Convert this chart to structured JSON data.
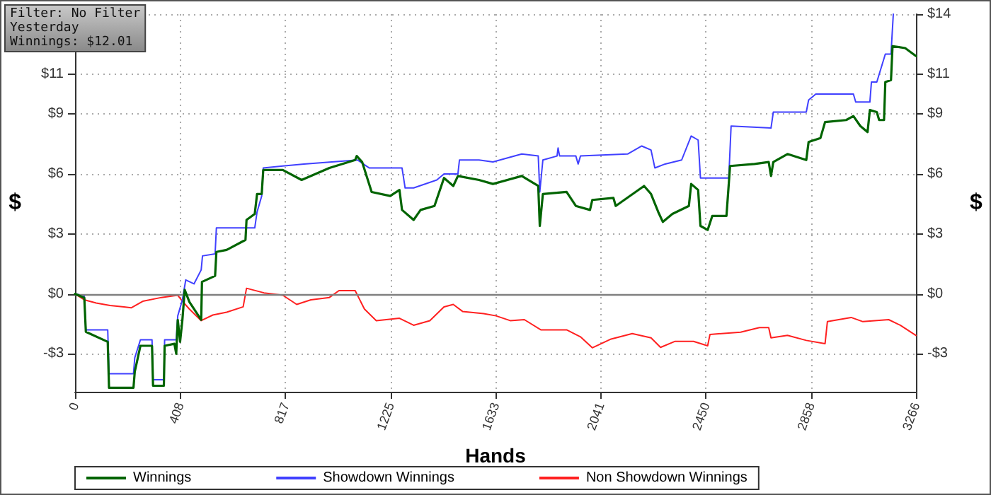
{
  "chart_data": {
    "type": "line",
    "xlabel": "Hands",
    "ylabel": "$",
    "y2label": "$",
    "annotations": [
      "Filter: No Filter",
      "Yesterday",
      "Winnings: $12.01"
    ],
    "xlim": [
      0,
      3266
    ],
    "xticks": [
      0,
      408,
      817,
      1225,
      1633,
      2041,
      2450,
      2858,
      3266
    ],
    "ylim": [
      -4.9,
      14
    ],
    "yticks": [
      {
        "value": -3,
        "label": "-$3"
      },
      {
        "value": 0,
        "label": "$0"
      },
      {
        "value": 3,
        "label": "$3"
      },
      {
        "value": 6,
        "label": "$6"
      },
      {
        "value": 9,
        "label": "$9"
      },
      {
        "value": 11,
        "label": "$11"
      },
      {
        "value": 14,
        "label": null
      }
    ],
    "y2lim": [
      -4.9,
      14
    ],
    "y2ticks": [
      {
        "value": -3,
        "label": "-$3"
      },
      {
        "value": 0,
        "label": "$0"
      },
      {
        "value": 3,
        "label": "$3"
      },
      {
        "value": 6,
        "label": "$6"
      },
      {
        "value": 9,
        "label": "$9"
      },
      {
        "value": 11,
        "label": "$11"
      },
      {
        "value": 14,
        "label": "$14"
      }
    ],
    "grid": true,
    "legend": "bottom left",
    "marker": "none",
    "line_style": "solid",
    "ref_lines": [
      {
        "axis": "y",
        "value": 0,
        "label": null,
        "color": "#808080"
      }
    ],
    "series": [
      {
        "name": "Winnings",
        "color": "#006400",
        "x": [
          0,
          36,
          42,
          127,
          132,
          227,
          232,
          254,
          299,
          303,
          345,
          348,
          386,
          393,
          399,
          408,
          417,
          426,
          444,
          490,
          493,
          544,
          549,
          589,
          662,
          666,
          698,
          707,
          725,
          731,
          807,
          880,
          988,
          1088,
          1094,
          1115,
          1152,
          1224,
          1260,
          1270,
          1315,
          1342,
          1396,
          1433,
          1469,
          1487,
          1569,
          1623,
          1735,
          1799,
          1805,
          1817,
          1909,
          1945,
          2000,
          2009,
          2091,
          2100,
          2210,
          2237,
          2265,
          2283,
          2320,
          2384,
          2393,
          2420,
          2429,
          2457,
          2475,
          2530,
          2544,
          2639,
          2694,
          2703,
          2712,
          2767,
          2840,
          2849,
          2895,
          2913,
          2995,
          3023,
          3050,
          3078,
          3087,
          3114,
          3123,
          3142,
          3147,
          3169,
          3175,
          3224,
          3266
        ],
        "values": [
          0,
          -0.2,
          -1.9,
          -2.4,
          -4.7,
          -4.7,
          -3.9,
          -2.6,
          -2.6,
          -4.6,
          -4.6,
          -2.6,
          -2.5,
          -3.0,
          -1.3,
          -2.4,
          -1.3,
          0.2,
          -0.4,
          -1.3,
          0.6,
          0.9,
          2.1,
          2.2,
          2.7,
          3.7,
          4.0,
          5.0,
          5.0,
          6.2,
          6.2,
          5.7,
          6.3,
          6.7,
          6.9,
          6.6,
          5.1,
          4.9,
          5.2,
          4.2,
          3.7,
          4.2,
          4.4,
          5.8,
          5.4,
          5.9,
          5.7,
          5.5,
          5.9,
          5.4,
          3.4,
          5.0,
          5.1,
          4.4,
          4.2,
          4.7,
          4.8,
          4.4,
          5.4,
          5.0,
          4.1,
          3.6,
          4.0,
          4.4,
          5.5,
          5.2,
          3.4,
          3.2,
          3.9,
          3.9,
          6.4,
          6.5,
          6.6,
          5.9,
          6.6,
          7.0,
          6.7,
          7.6,
          7.8,
          8.6,
          8.7,
          8.9,
          8.4,
          8.1,
          9.2,
          9.1,
          8.7,
          8.7,
          10.6,
          10.7,
          12.4,
          12.3,
          11.9
        ]
      },
      {
        "name": "Showdown Winnings",
        "color": "#4040ff",
        "x": [
          0,
          36,
          42,
          127,
          132,
          227,
          232,
          254,
          299,
          303,
          345,
          348,
          393,
          399,
          417,
          430,
          462,
          490,
          495,
          544,
          549,
          698,
          707,
          725,
          731,
          807,
          889,
          1097,
          1143,
          1270,
          1282,
          1315,
          1405,
          1433,
          1487,
          1493,
          1569,
          1623,
          1735,
          1799,
          1805,
          1817,
          1872,
          1876,
          1882,
          1945,
          1954,
          1963,
          2146,
          2201,
          2237,
          2252,
          2292,
          2356,
          2393,
          2420,
          2429,
          2539,
          2548,
          2703,
          2712,
          2840,
          2849,
          2877,
          3023,
          3032,
          3087,
          3093,
          3114,
          3147,
          3169,
          3178
        ],
        "values": [
          0,
          -0.1,
          -1.8,
          -1.8,
          -4.0,
          -4.0,
          -3.2,
          -2.3,
          -2.3,
          -4.3,
          -4.3,
          -2.3,
          -2.3,
          -1.1,
          -0.3,
          0.7,
          0.5,
          1.2,
          1.9,
          2.0,
          3.3,
          3.3,
          4.1,
          4.9,
          6.3,
          6.4,
          6.5,
          6.7,
          6.3,
          6.3,
          5.3,
          5.3,
          5.7,
          6.0,
          6.0,
          6.7,
          6.7,
          6.6,
          7.0,
          6.9,
          5.1,
          6.7,
          6.9,
          7.3,
          6.9,
          6.9,
          6.5,
          6.9,
          7.0,
          7.4,
          7.2,
          6.3,
          6.5,
          6.7,
          7.9,
          7.7,
          5.8,
          5.8,
          8.4,
          8.3,
          9.1,
          9.1,
          9.7,
          10.0,
          10.0,
          9.6,
          9.6,
          10.6,
          10.6,
          12.0,
          12.0,
          14.0
        ]
      },
      {
        "name": "Non Showdown Winnings",
        "color": "#ff2020",
        "x": [
          0,
          36,
          82,
          136,
          190,
          218,
          263,
          336,
          399,
          417,
          444,
          490,
          535,
          589,
          653,
          666,
          734,
          807,
          861,
          916,
          988,
          1025,
          1088,
          1124,
          1170,
          1260,
          1315,
          1378,
          1433,
          1469,
          1505,
          1587,
          1635,
          1690,
          1745,
          1809,
          1909,
          1963,
          2009,
          2082,
          2164,
          2237,
          2274,
          2329,
          2402,
          2457,
          2466,
          2585,
          2658,
          2694,
          2703,
          2767,
          2840,
          2913,
          2922,
          3014,
          3060,
          3160,
          3205,
          3266
        ],
        "values": [
          0,
          -0.3,
          -0.46,
          -0.58,
          -0.65,
          -0.7,
          -0.37,
          -0.18,
          -0.07,
          -0.37,
          -0.76,
          -1.34,
          -1.06,
          -0.92,
          -0.65,
          0.28,
          0.05,
          -0.07,
          -0.53,
          -0.3,
          -0.18,
          0.16,
          0.16,
          -0.76,
          -1.34,
          -1.22,
          -1.57,
          -1.34,
          -0.65,
          -0.53,
          -0.88,
          -0.99,
          -1.1,
          -1.34,
          -1.29,
          -1.8,
          -1.8,
          -2.15,
          -2.7,
          -2.26,
          -1.99,
          -2.2,
          -2.68,
          -2.38,
          -2.38,
          -2.6,
          -2.03,
          -1.92,
          -1.69,
          -1.69,
          -2.2,
          -2.08,
          -2.33,
          -2.49,
          -1.39,
          -1.18,
          -1.39,
          -1.29,
          -1.57,
          -2.08
        ]
      }
    ]
  }
}
